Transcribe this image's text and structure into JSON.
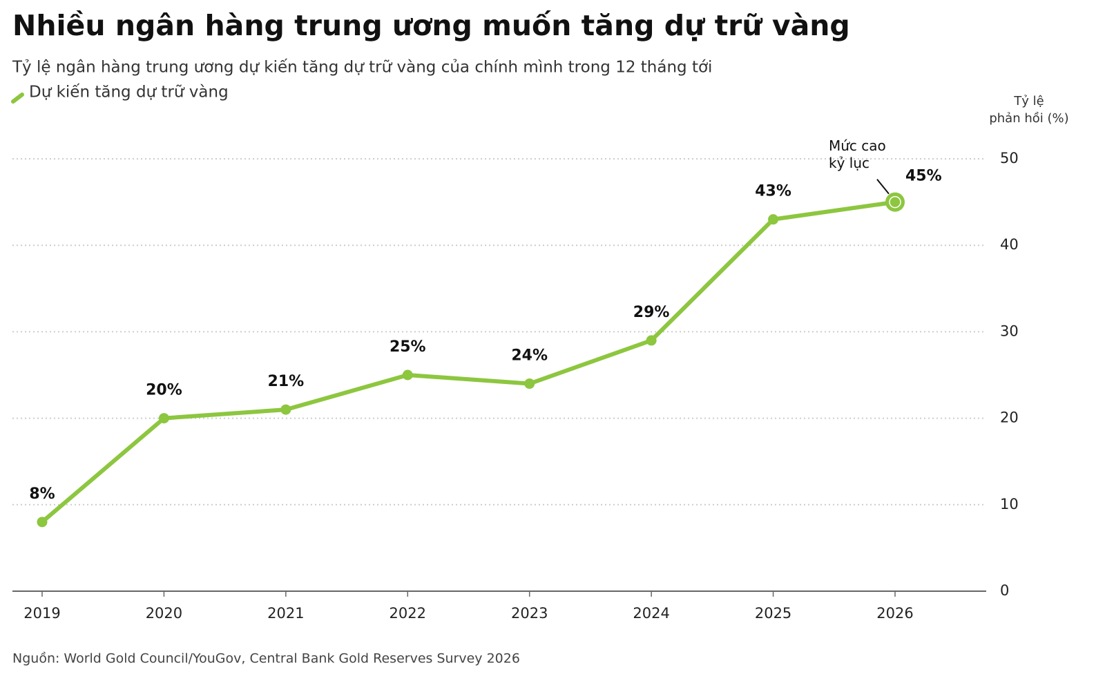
{
  "chart_data": {
    "type": "line",
    "title": "Nhiều ngân hàng trung ương muốn tăng dự trữ vàng",
    "subtitle": "Tỷ lệ ngân hàng trung ương dự kiến tăng dự trữ vàng của chính mình trong 12 tháng tới",
    "y_label": [
      "Tỷ lệ",
      "phản hồi (%)"
    ],
    "categories": [
      "2019",
      "2020",
      "2021",
      "2022",
      "2023",
      "2024",
      "2025",
      "2026"
    ],
    "series": [
      {
        "name": "Dự kiến tăng dự trữ vàng",
        "color": "#8dc63f",
        "values": [
          8,
          20,
          21,
          25,
          24,
          29,
          43,
          45
        ],
        "value_labels": [
          "8%",
          "20%",
          "21%",
          "25%",
          "24%",
          "29%",
          "43%",
          "45%"
        ]
      }
    ],
    "annotation": [
      "Mức cao",
      "kỷ lục"
    ],
    "ylim": [
      0,
      50
    ],
    "yticks": [
      0,
      10,
      20,
      30,
      40,
      50
    ],
    "grid": true,
    "source": "Nguồn: World Gold Council/YouGov, Central Bank Gold Reserves Survey 2026"
  }
}
